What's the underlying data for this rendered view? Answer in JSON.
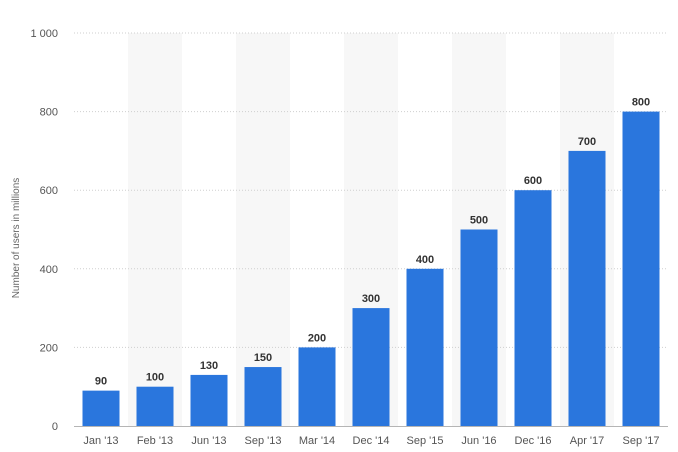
{
  "chart_data": {
    "type": "bar",
    "title": "",
    "xlabel": "",
    "ylabel": "Number of users in millions",
    "categories": [
      "Jan '13",
      "Feb '13",
      "Jun '13",
      "Sep '13",
      "Mar '14",
      "Dec '14",
      "Sep '15",
      "Jun '16",
      "Dec '16",
      "Apr '17",
      "Sep '17"
    ],
    "values": [
      90,
      100,
      130,
      150,
      200,
      300,
      400,
      500,
      600,
      700,
      800
    ],
    "data_labels": [
      "90",
      "100",
      "130",
      "150",
      "200",
      "300",
      "400",
      "500",
      "600",
      "700",
      "800"
    ],
    "ylim": [
      0,
      1000
    ],
    "yticks": [
      0,
      200,
      400,
      600,
      800,
      1000
    ],
    "ytick_labels": [
      "0",
      "200",
      "400",
      "600",
      "800",
      "1 000"
    ],
    "grid": true,
    "alternating_bands": true,
    "legend": "none",
    "colors": {
      "bar": "#2a76dd",
      "band": "#f7f7f7",
      "grid": "#cfcfcf"
    }
  }
}
